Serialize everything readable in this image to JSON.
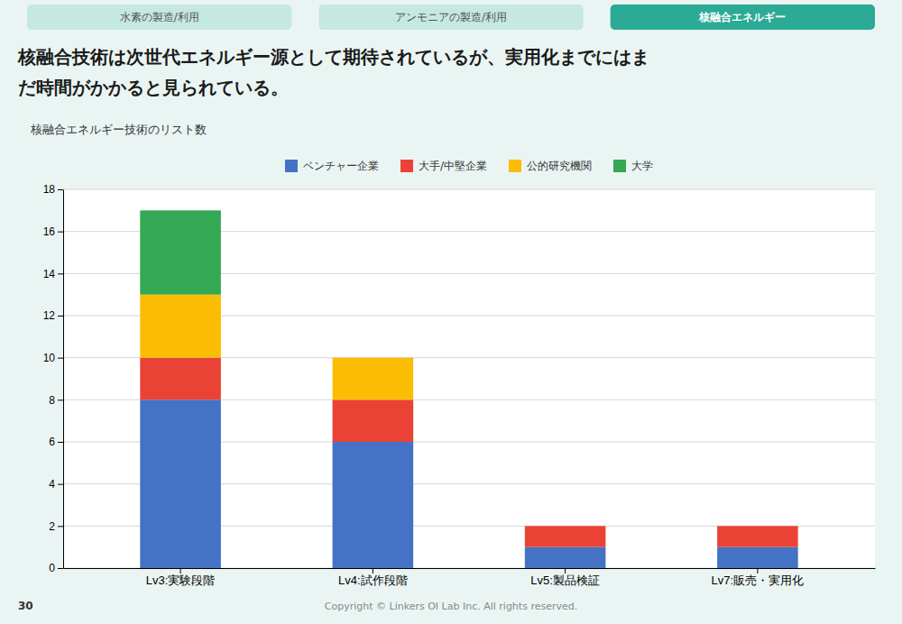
{
  "page": {
    "tabs": [
      "水素の製造/利用",
      "アンモニアの製造/利用",
      "核融合エネルギー"
    ],
    "active_tab": 2,
    "page_number": "30",
    "footer": "Copyright © Linkers OI Lab Inc. All rights reserved."
  },
  "chart_data": {
    "type": "bar",
    "stacked": true,
    "title": [
      "核融合技術は次世代エネルギー源として期待されているが、実用化までにはま",
      "だ時間がかかると見られている。"
    ],
    "subtitle": "核融合エネルギー技術のリスト数",
    "categories": [
      "Lv3:実験段階",
      "Lv4:試作段階",
      "Lv5:製品検証",
      "Lv7:販売・実用化"
    ],
    "series": [
      {
        "name": "ベンチャー企業",
        "color": "#4472c4",
        "values": [
          8,
          6,
          1,
          1
        ]
      },
      {
        "name": "大手/中堅企業",
        "color": "#ea4335",
        "values": [
          2,
          2,
          1,
          1
        ]
      },
      {
        "name": "公的研究機関",
        "color": "#fbbc04",
        "values": [
          3,
          2,
          0,
          0
        ]
      },
      {
        "name": "大学",
        "color": "#34a853",
        "values": [
          4,
          0,
          0,
          0
        ]
      }
    ],
    "ylim": [
      0,
      18
    ],
    "yticks": [
      0,
      2,
      4,
      6,
      8,
      10,
      12,
      14,
      16,
      18
    ],
    "grid": true,
    "legend": "top"
  }
}
